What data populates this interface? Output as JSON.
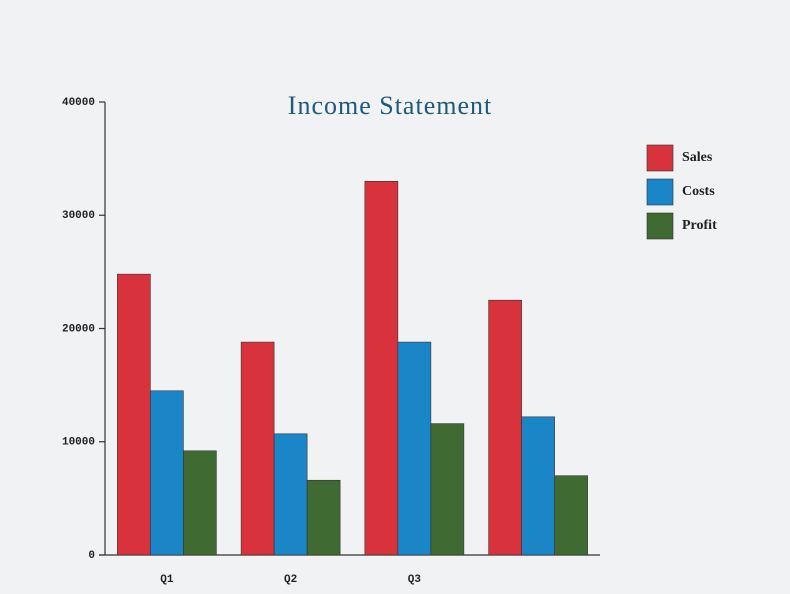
{
  "chart_data": {
    "type": "bar",
    "title": "Income Statement",
    "categories": [
      "Q1",
      "Q2",
      "Q3",
      null
    ],
    "series": [
      {
        "name": "Sales",
        "color": "#d8323c",
        "values": [
          24800,
          18800,
          33000,
          22500
        ]
      },
      {
        "name": "Costs",
        "color": "#1a86c8",
        "values": [
          14500,
          10700,
          18800,
          12200
        ]
      },
      {
        "name": "Profit",
        "color": "#3f6b32",
        "values": [
          9200,
          6600,
          11600,
          7000
        ]
      }
    ],
    "ylim": [
      0,
      40000
    ],
    "yticks": [
      0,
      10000,
      20000,
      30000,
      40000
    ],
    "legend": "top-right"
  }
}
